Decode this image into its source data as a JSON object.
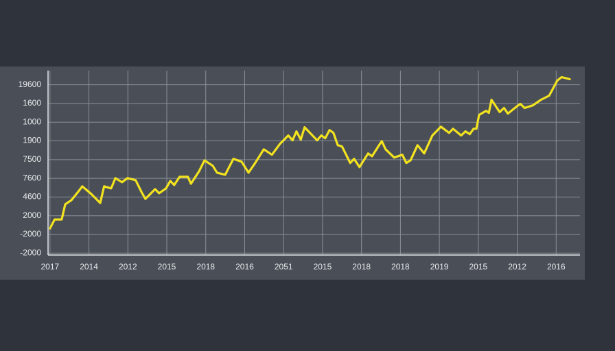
{
  "chart_data": {
    "type": "line",
    "xlim": [
      -0.05,
      13.7
    ],
    "ylim": [
      -0.1,
      9.5
    ],
    "xticks": [
      {
        "value": 0,
        "label": "2017"
      },
      {
        "value": 1,
        "label": "2014"
      },
      {
        "value": 2,
        "label": "2012"
      },
      {
        "value": 3,
        "label": "2015"
      },
      {
        "value": 4,
        "label": "2018"
      },
      {
        "value": 5,
        "label": "2016"
      },
      {
        "value": 6,
        "label": "2051"
      },
      {
        "value": 7,
        "label": "2015"
      },
      {
        "value": 8,
        "label": "2018"
      },
      {
        "value": 9,
        "label": "2018"
      },
      {
        "value": 10,
        "label": "2019"
      },
      {
        "value": 11,
        "label": "2015"
      },
      {
        "value": 12,
        "label": "2012"
      },
      {
        "value": 13,
        "label": "2016"
      }
    ],
    "yticks": [
      {
        "value": 0,
        "label": "-2000"
      },
      {
        "value": 1,
        "label": "-2000"
      },
      {
        "value": 2,
        "label": "2000"
      },
      {
        "value": 3,
        "label": "4600"
      },
      {
        "value": 4,
        "label": "7600"
      },
      {
        "value": 5,
        "label": "7500"
      },
      {
        "value": 6,
        "label": "1900"
      },
      {
        "value": 7,
        "label": "1000"
      },
      {
        "value": 8,
        "label": "1600"
      },
      {
        "value": 9,
        "label": "19600"
      }
    ],
    "grid": true,
    "series": [
      {
        "color": "#f2e21f",
        "x": [
          0.0,
          0.12,
          0.3,
          0.39,
          0.55,
          0.72,
          0.83,
          1.06,
          1.29,
          1.39,
          1.57,
          1.68,
          1.85,
          1.99,
          2.2,
          2.35,
          2.45,
          2.7,
          2.8,
          2.98,
          3.09,
          3.19,
          3.33,
          3.54,
          3.62,
          3.83,
          3.97,
          4.18,
          4.29,
          4.5,
          4.71,
          4.92,
          5.1,
          5.27,
          5.49,
          5.7,
          5.91,
          6.12,
          6.23,
          6.33,
          6.44,
          6.54,
          6.86,
          6.97,
          7.07,
          7.18,
          7.28,
          7.39,
          7.5,
          7.71,
          7.81,
          7.95,
          8.17,
          8.27,
          8.52,
          8.62,
          8.84,
          9.05,
          9.15,
          9.26,
          9.44,
          9.61,
          9.82,
          10.04,
          10.25,
          10.35,
          10.56,
          10.67,
          10.78,
          10.88,
          10.95,
          11.02,
          11.2,
          11.27,
          11.34,
          11.55,
          11.66,
          11.76,
          11.98,
          12.08,
          12.19,
          12.4,
          12.61,
          12.82,
          13.03,
          13.14,
          13.35
        ],
        "values": [
          1.32,
          1.8,
          1.8,
          2.61,
          2.83,
          3.27,
          3.57,
          3.16,
          2.68,
          3.57,
          3.46,
          4.01,
          3.79,
          4.01,
          3.9,
          3.27,
          2.9,
          3.42,
          3.2,
          3.46,
          3.86,
          3.64,
          4.08,
          4.08,
          3.71,
          4.38,
          4.96,
          4.67,
          4.3,
          4.19,
          5.04,
          4.89,
          4.3,
          4.82,
          5.55,
          5.26,
          5.85,
          6.29,
          6.03,
          6.51,
          6.07,
          6.73,
          6.03,
          6.29,
          6.14,
          6.58,
          6.43,
          5.77,
          5.7,
          4.82,
          5.04,
          4.6,
          5.33,
          5.18,
          5.99,
          5.55,
          5.11,
          5.26,
          4.82,
          4.96,
          5.77,
          5.33,
          6.29,
          6.76,
          6.43,
          6.65,
          6.29,
          6.51,
          6.36,
          6.65,
          6.65,
          7.39,
          7.61,
          7.5,
          8.2,
          7.54,
          7.76,
          7.46,
          7.83,
          7.98,
          7.76,
          7.9,
          8.2,
          8.42,
          9.23,
          9.41,
          9.3
        ]
      }
    ]
  }
}
